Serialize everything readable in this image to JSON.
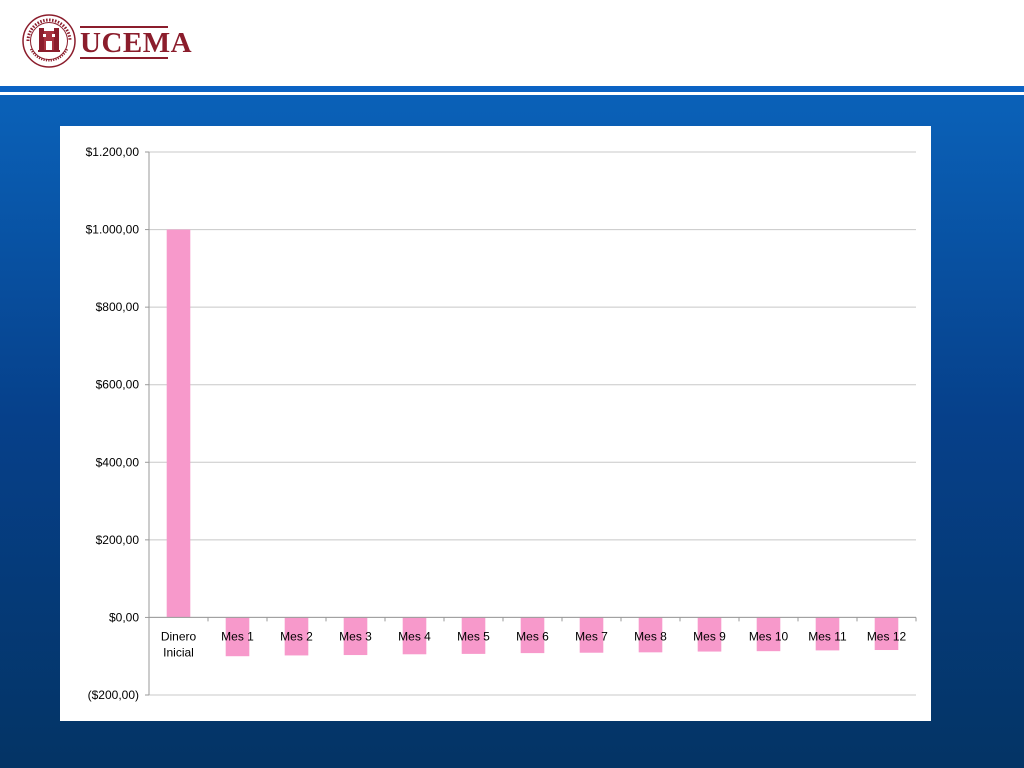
{
  "header": {
    "brand": "UCEMA",
    "seal_text": "UNIVERSIDAD DEL CEMA",
    "seal_year": "MCMXCVIII",
    "brand_color": "#8b1d2c"
  },
  "chart_data": {
    "type": "bar",
    "title": "",
    "xlabel": "",
    "ylabel": "",
    "categories": [
      "Dinero Inicial",
      "Mes 1",
      "Mes 2",
      "Mes 3",
      "Mes 4",
      "Mes 5",
      "Mes 6",
      "Mes 7",
      "Mes 8",
      "Mes 9",
      "Mes 10",
      "Mes 11",
      "Mes 12"
    ],
    "category_lines": [
      [
        "Dinero",
        "Inicial"
      ],
      [
        "Mes 1"
      ],
      [
        "Mes 2"
      ],
      [
        "Mes 3"
      ],
      [
        "Mes 4"
      ],
      [
        "Mes 5"
      ],
      [
        "Mes 6"
      ],
      [
        "Mes 7"
      ],
      [
        "Mes 8"
      ],
      [
        "Mes 9"
      ],
      [
        "Mes 10"
      ],
      [
        "Mes 11"
      ],
      [
        "Mes 12"
      ]
    ],
    "values": [
      1000,
      -100,
      -98,
      -97,
      -95,
      -94,
      -92,
      -91,
      -90,
      -88,
      -87,
      -85,
      -84
    ],
    "ylim": [
      -200,
      1200
    ],
    "yticks": [
      -200,
      0,
      200,
      400,
      600,
      800,
      1000,
      1200
    ],
    "ytick_labels": [
      "($200,00)",
      "$0,00",
      "$200,00",
      "$400,00",
      "$600,00",
      "$800,00",
      "$1.000,00",
      "$1.200,00"
    ],
    "grid": true,
    "bar_color": "#f799cb",
    "grid_color": "#c8c8c8"
  }
}
